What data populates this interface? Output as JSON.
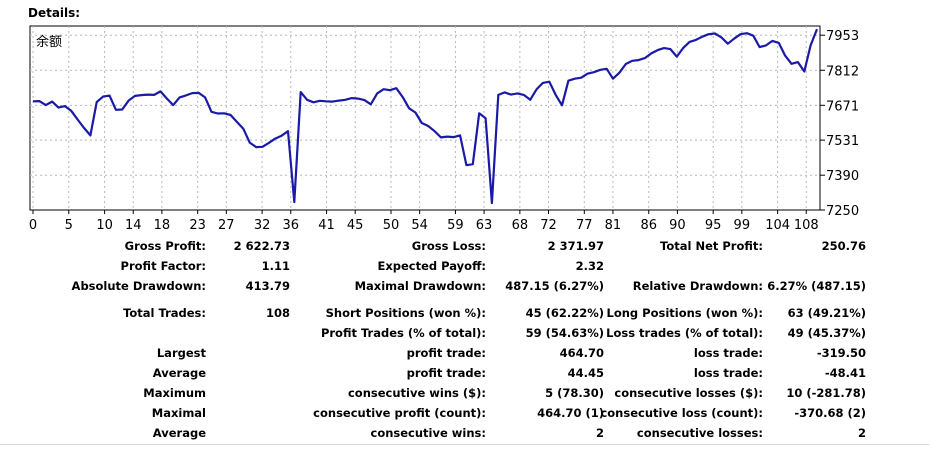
{
  "section_title": "Details:",
  "chart_data": {
    "type": "line",
    "title": "余额",
    "series": [
      {
        "name": "余额",
        "values": [
          7687,
          7688,
          7672,
          7686,
          7662,
          7668,
          7649,
          7614,
          7580,
          7550,
          7684,
          7706,
          7710,
          7653,
          7654,
          7690,
          7709,
          7712,
          7714,
          7713,
          7727,
          7698,
          7672,
          7703,
          7711,
          7720,
          7721,
          7703,
          7645,
          7638,
          7639,
          7632,
          7604,
          7577,
          7521,
          7503,
          7504,
          7520,
          7537,
          7549,
          7567,
          7282,
          7724,
          7693,
          7683,
          7689,
          7687,
          7686,
          7690,
          7693,
          7700,
          7698,
          7692,
          7675,
          7719,
          7736,
          7732,
          7740,
          7704,
          7659,
          7642,
          7600,
          7588,
          7567,
          7542,
          7545,
          7543,
          7550,
          7430,
          7434,
          7639,
          7619,
          7278,
          7713,
          7723,
          7714,
          7719,
          7713,
          7693,
          7735,
          7761,
          7766,
          7713,
          7671,
          7770,
          7778,
          7782,
          7798,
          7804,
          7814,
          7818,
          7778,
          7802,
          7837,
          7850,
          7853,
          7861,
          7880,
          7893,
          7901,
          7897,
          7867,
          7901,
          7926,
          7934,
          7947,
          7957,
          7960,
          7944,
          7919,
          7939,
          7957,
          7961,
          7951,
          7905,
          7912,
          7930,
          7922,
          7871,
          7838,
          7845,
          7807,
          7912,
          7977
        ]
      }
    ],
    "xticks": [
      "0",
      "5",
      "10",
      "14",
      "18",
      "23",
      "27",
      "32",
      "36",
      "41",
      "45",
      "50",
      "54",
      "59",
      "63",
      "68",
      "72",
      "77",
      "81",
      "86",
      "90",
      "95",
      "99",
      "104",
      "108"
    ],
    "yticks": [
      "7953",
      "7812",
      "7671",
      "7531",
      "7390",
      "7250"
    ],
    "ylim": [
      7250,
      7990
    ],
    "line_color": "#1a1aa6"
  },
  "stats": {
    "rows": [
      [
        {
          "label": "Gross Profit:",
          "value": "2 622.73"
        },
        {
          "label": "Gross Loss:",
          "value": "2 371.97"
        },
        {
          "label": "Total Net Profit:",
          "value": "250.76"
        }
      ],
      [
        {
          "label": "Profit Factor:",
          "value": "1.11"
        },
        {
          "label": "Expected Payoff:",
          "value": "2.32"
        },
        {
          "label": "",
          "value": ""
        }
      ],
      [
        {
          "label": "Absolute Drawdown:",
          "value": "413.79"
        },
        {
          "label": "Maximal Drawdown:",
          "value": "487.15 (6.27%)"
        },
        {
          "label": "Relative Drawdown:",
          "value": "6.27% (487.15)"
        }
      ],
      [
        {
          "label": "Total Trades:",
          "value": "108"
        },
        {
          "label": "Short Positions (won %):",
          "value": "45 (62.22%)"
        },
        {
          "label": "Long Positions (won %):",
          "value": "63 (49.21%)"
        }
      ],
      [
        {
          "label": "",
          "value": ""
        },
        {
          "label": "Profit Trades (% of total):",
          "value": "59 (54.63%)"
        },
        {
          "label": "Loss trades (% of total):",
          "value": "49 (45.37%)"
        }
      ],
      [
        {
          "label": "Largest",
          "value": ""
        },
        {
          "label": "profit trade:",
          "value": "464.70"
        },
        {
          "label": "loss trade:",
          "value": "-319.50"
        }
      ],
      [
        {
          "label": "Average",
          "value": ""
        },
        {
          "label": "profit trade:",
          "value": "44.45"
        },
        {
          "label": "loss trade:",
          "value": "-48.41"
        }
      ],
      [
        {
          "label": "Maximum",
          "value": ""
        },
        {
          "label": "consecutive wins ($):",
          "value": "5 (78.30)"
        },
        {
          "label": "consecutive losses ($):",
          "value": "10 (-281.78)"
        }
      ],
      [
        {
          "label": "Maximal",
          "value": ""
        },
        {
          "label": "consecutive profit (count):",
          "value": "464.70 (1)"
        },
        {
          "label": "consecutive loss (count):",
          "value": "-370.68 (2)"
        }
      ],
      [
        {
          "label": "Average",
          "value": ""
        },
        {
          "label": "consecutive wins:",
          "value": "2"
        },
        {
          "label": "consecutive losses:",
          "value": "2"
        }
      ]
    ]
  }
}
